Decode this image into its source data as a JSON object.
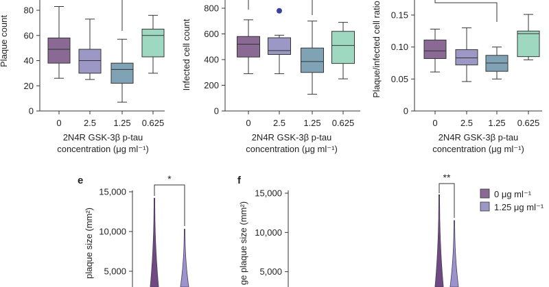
{
  "colors": {
    "c0": "#8a6a94",
    "c25": "#9c98c6",
    "c125": "#7fa3b4",
    "c0625": "#9fd8c0",
    "outlier": "#3b3fa4",
    "violet_0": "#6f4a82",
    "violet_125": "#9b93cc",
    "axis": "#333333"
  },
  "chart_data": [
    {
      "type": "box",
      "ylabel": "Plaque count",
      "yticks": [
        0,
        20,
        40,
        60,
        80
      ],
      "xlabel_line1": "2N4R GSK-3β p-tau",
      "xlabel_line2": "concentration (μg ml⁻¹)",
      "categories": [
        "0",
        "2.5",
        "1.25",
        "0.625"
      ],
      "boxes": [
        {
          "min": 26,
          "q1": 38,
          "median": 49,
          "q3": 58,
          "max": 83
        },
        {
          "min": 25,
          "q1": 30,
          "median": 40,
          "q3": 49,
          "max": 73
        },
        {
          "min": 7,
          "q1": 22,
          "median": 33,
          "q3": 38,
          "max": 57
        },
        {
          "min": 30,
          "q1": 43,
          "median": 60,
          "q3": 65,
          "max": 76
        }
      ],
      "significance": ""
    },
    {
      "type": "box",
      "ylabel": "Infected cell count",
      "yticks": [
        0,
        200,
        400,
        600,
        800
      ],
      "xlabel_line1": "2N4R GSK-3β p-tau",
      "xlabel_line2": "concentration (μg ml⁻¹)",
      "categories": [
        "0",
        "2.5",
        "1.25",
        "0.625"
      ],
      "boxes": [
        {
          "min": 290,
          "q1": 420,
          "median": 520,
          "q3": 580,
          "max": 710
        },
        {
          "min": 290,
          "q1": 440,
          "median": 470,
          "q3": 570,
          "max": 590
        },
        {
          "min": 130,
          "q1": 300,
          "median": 385,
          "q3": 490,
          "max": 700
        },
        {
          "min": 250,
          "q1": 370,
          "median": 510,
          "q3": 620,
          "max": 690
        }
      ],
      "outliers": [
        {
          "category": "2.5",
          "value": 780
        }
      ],
      "significance": ""
    },
    {
      "type": "box",
      "ylabel": "Plaque/infected cell ratio",
      "yticks": [
        "0",
        "0.05",
        "0.10",
        "0.15"
      ],
      "xlabel_line1": "2N4R GSK-3β p-tau",
      "xlabel_line2": "concentration (μg ml⁻¹)",
      "categories": [
        "0",
        "2.5",
        "1.25",
        "0.625"
      ],
      "boxes": [
        {
          "min": 0.061,
          "q1": 0.082,
          "median": 0.094,
          "q3": 0.111,
          "max": 0.128
        },
        {
          "min": 0.046,
          "q1": 0.072,
          "median": 0.083,
          "q3": 0.096,
          "max": 0.13
        },
        {
          "min": 0.05,
          "q1": 0.062,
          "median": 0.075,
          "q3": 0.087,
          "max": 0.1
        },
        {
          "min": 0.08,
          "q1": 0.085,
          "median": 0.121,
          "q3": 0.125,
          "max": 0.151
        }
      ],
      "significance": ""
    },
    {
      "type": "violin",
      "panel_label": "e",
      "ylabel": "plaque size (mm²)",
      "yticks": [
        "5,000",
        "10,000",
        "15,000"
      ],
      "groups": [
        "0 μg ml⁻¹",
        "1.25 μg ml⁻¹"
      ],
      "max_values": [
        14200,
        10300
      ],
      "significance": "*"
    },
    {
      "type": "violin",
      "panel_label": "f",
      "ylabel": "ge plaque size (mm²)",
      "yticks": [
        "5,000",
        "10,000",
        "15,000"
      ],
      "groups": [
        "0 μg ml⁻¹",
        "1.25 μg ml⁻¹"
      ],
      "max_values": [
        14800,
        11500
      ],
      "significance": "**",
      "legend": [
        "0 μg ml⁻¹",
        "1.25 μg ml⁻¹"
      ]
    }
  ]
}
